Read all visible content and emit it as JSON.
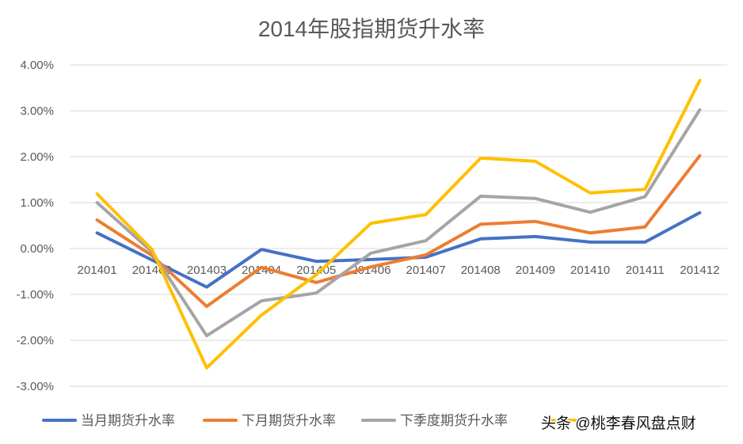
{
  "chart_data": {
    "type": "line",
    "title": "2014年股指期货升水率",
    "categories": [
      "201401",
      "201402",
      "201403",
      "201404",
      "201405",
      "201406",
      "201407",
      "201408",
      "201409",
      "201410",
      "201411",
      "201412"
    ],
    "y_ticks": [
      "4.00%",
      "3.00%",
      "2.00%",
      "1.00%",
      "0.00%",
      "-1.00%",
      "-2.00%",
      "-3.00%"
    ],
    "ylim": [
      -3,
      4
    ],
    "grid": true,
    "legend": "bottom",
    "series": [
      {
        "name": "当月期货升水率",
        "color": "#4472C4",
        "values": [
          0.34,
          -0.25,
          -0.84,
          -0.02,
          -0.28,
          -0.24,
          -0.19,
          0.21,
          0.26,
          0.14,
          0.14,
          0.78
        ]
      },
      {
        "name": "下月期货升水率",
        "color": "#ED7D31",
        "values": [
          0.62,
          -0.15,
          -1.26,
          -0.41,
          -0.74,
          -0.4,
          -0.14,
          0.53,
          0.59,
          0.34,
          0.47,
          2.02
        ]
      },
      {
        "name": "下季度期货升水率",
        "color": "#A5A5A5",
        "values": [
          1.0,
          -0.07,
          -1.9,
          -1.14,
          -0.97,
          -0.1,
          0.17,
          1.14,
          1.09,
          0.79,
          1.13,
          3.02
        ]
      },
      {
        "color": "#FFC000",
        "values": [
          1.19,
          -0.02,
          -2.6,
          -1.45,
          -0.57,
          0.55,
          0.74,
          1.97,
          1.9,
          1.21,
          1.29,
          3.66
        ]
      }
    ]
  },
  "watermark": "头条 @桃李春风盘点财"
}
